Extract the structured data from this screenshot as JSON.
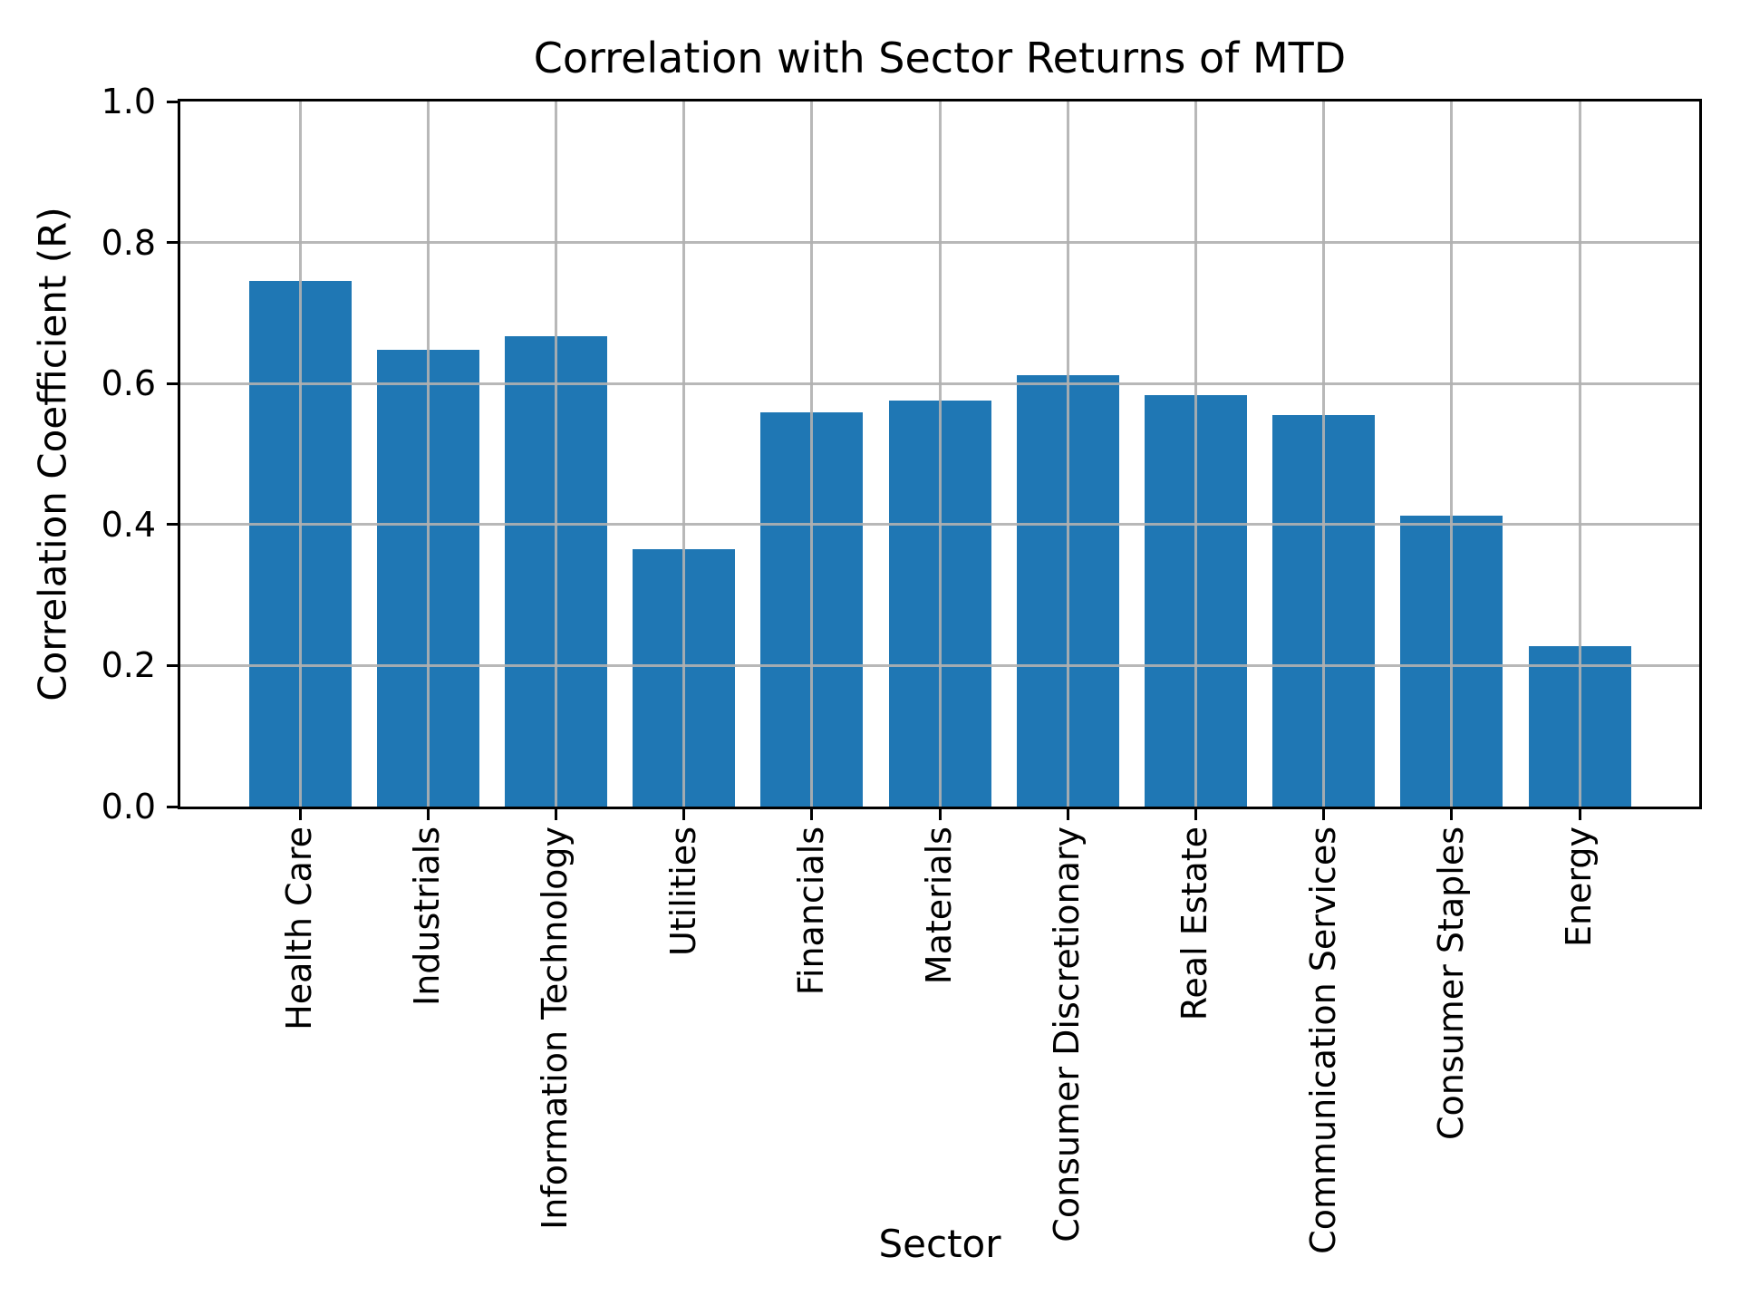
{
  "chart_data": {
    "type": "bar",
    "title": "Correlation with Sector Returns of MTD",
    "xlabel": "Sector",
    "ylabel": "Correlation Coefficient (R)",
    "categories": [
      "Health Care",
      "Industrials",
      "Information Technology",
      "Utilities",
      "Financials",
      "Materials",
      "Consumer Discretionary",
      "Real Estate",
      "Communication Services",
      "Consumer Staples",
      "Energy"
    ],
    "values": [
      0.745,
      0.648,
      0.667,
      0.365,
      0.559,
      0.576,
      0.612,
      0.584,
      0.555,
      0.413,
      0.228
    ],
    "ylim": [
      0.0,
      1.0
    ],
    "ytick_labels": [
      "0.0",
      "0.2",
      "0.4",
      "0.6",
      "0.8",
      "1.0"
    ],
    "grid_tick_values": [
      0.2,
      0.4,
      0.6,
      0.8
    ],
    "x_tick_rotation_deg": 90,
    "bar_color": "#1f77b4",
    "grid_color": "#b0b0b0",
    "grid": true,
    "legend_position": "none"
  }
}
